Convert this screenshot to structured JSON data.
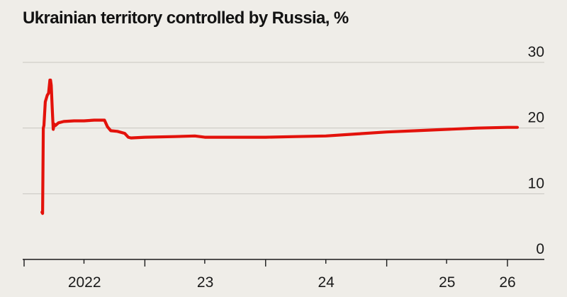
{
  "chart_data": {
    "type": "line",
    "title": "Ukrainian territory controlled by Russia, %",
    "xlabel": "",
    "ylabel": "",
    "ylim": [
      0,
      30
    ],
    "yticks": [
      "30",
      "20",
      "10",
      "0"
    ],
    "ytick_values": [
      30,
      20,
      10,
      0
    ],
    "xticks": [
      "2022",
      "23",
      "24",
      "25",
      "26"
    ],
    "xlim": [
      "2022-01-01",
      "2026-01-31"
    ],
    "grid": true,
    "series": [
      {
        "color": "#e3120b",
        "x": [
          "2022-02-24",
          "2022-02-26",
          "2022-02-28",
          "2022-03-02",
          "2022-03-06",
          "2022-03-12",
          "2022-03-16",
          "2022-03-20",
          "2022-03-22",
          "2022-03-24",
          "2022-03-27",
          "2022-03-30",
          "2022-04-02",
          "2022-04-06",
          "2022-04-15",
          "2022-05-01",
          "2022-06-01",
          "2022-07-01",
          "2022-08-01",
          "2022-09-01",
          "2022-09-10",
          "2022-09-20",
          "2022-10-10",
          "2022-11-01",
          "2022-11-12",
          "2022-11-20",
          "2023-01-01",
          "2023-04-01",
          "2023-06-01",
          "2023-07-01",
          "2023-10-01",
          "2024-01-01",
          "2024-04-01",
          "2024-07-01",
          "2024-10-01",
          "2025-01-01",
          "2025-04-01",
          "2025-07-01",
          "2025-10-01",
          "2026-01-01",
          "2026-01-31"
        ],
        "y": [
          7.2,
          7.0,
          20.0,
          20.4,
          24.0,
          25.0,
          25.3,
          27.3,
          27.3,
          26.5,
          23.0,
          19.8,
          20.6,
          20.4,
          20.8,
          21.0,
          21.1,
          21.1,
          21.2,
          21.2,
          20.2,
          19.6,
          19.5,
          19.2,
          18.6,
          18.5,
          18.6,
          18.7,
          18.8,
          18.6,
          18.6,
          18.6,
          18.7,
          18.8,
          19.1,
          19.4,
          19.6,
          19.8,
          20.0,
          20.1,
          20.1
        ]
      }
    ]
  }
}
